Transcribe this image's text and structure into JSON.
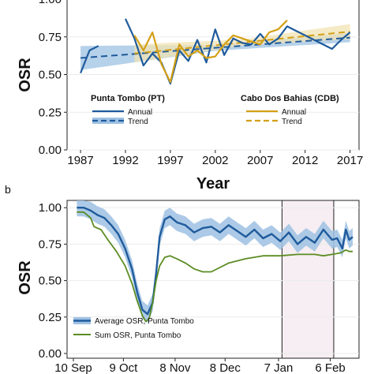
{
  "colors": {
    "pt": "#1f5b9c",
    "pt_band": "#9ec1e3",
    "cdb": "#d4a017",
    "cdb_band": "#f1e3b3",
    "green": "#5b8c22",
    "highlight": "#f6eef2"
  },
  "chart_data": [
    {
      "panel_label": "",
      "type": "line",
      "xlabel": "Year",
      "ylabel": "OSR",
      "xlim": [
        1985.5,
        2018
      ],
      "ylim": [
        0,
        1.0
      ],
      "x_ticks": [
        1987,
        1992,
        1997,
        2002,
        2007,
        2012,
        2017
      ],
      "y_ticks": [
        0,
        0.25,
        0.5,
        0.75,
        1.0
      ],
      "y_tick_labels": [
        "0.00",
        "0.25",
        "0.50",
        "0.75",
        "1.00"
      ],
      "legend_pt_title": "Punta Tombo (PT)",
      "legend_cdb_title": "Cabo Dos Bahias (CDB)",
      "legend_annual": "Annual",
      "legend_trend": "Trend",
      "series": [
        {
          "key": "pt_annual",
          "x": [
            1987,
            1988,
            1989,
            1991,
            1992,
            1993,
            1994,
            1995,
            1996,
            1997,
            1998,
            1999,
            2000,
            2001,
            2002,
            2003,
            2004,
            2005,
            2006,
            2007,
            2008,
            2009,
            2010,
            2015,
            2016,
            2017
          ],
          "y": [
            0.51,
            0.66,
            0.69,
            null,
            0.87,
            0.74,
            0.56,
            0.64,
            0.58,
            0.44,
            0.66,
            0.59,
            0.73,
            0.58,
            0.8,
            0.63,
            0.74,
            0.71,
            0.7,
            0.77,
            0.7,
            0.74,
            0.82,
            0.67,
            0.73,
            0.78
          ]
        },
        {
          "key": "cdb_annual",
          "x": [
            1993,
            1994,
            1995,
            1996,
            1997,
            1998,
            1999,
            2000,
            2001,
            2002,
            2003,
            2004,
            2005,
            2006,
            2007,
            2008,
            2009,
            2010
          ],
          "y": [
            0.76,
            0.66,
            0.78,
            0.57,
            0.45,
            0.7,
            0.62,
            0.66,
            0.61,
            0.62,
            0.7,
            0.76,
            0.74,
            0.72,
            0.7,
            0.78,
            0.8,
            0.86
          ]
        }
      ],
      "trends": [
        {
          "key": "pt_trend",
          "x": [
            1987,
            2017
          ],
          "y": [
            0.61,
            0.745
          ],
          "band": [
            0.08,
            0.02,
            0.03
          ]
        },
        {
          "key": "cdb_trend",
          "x": [
            1993,
            2017
          ],
          "y": [
            0.64,
            0.785
          ],
          "band": [
            0.06,
            0.02,
            0.05
          ]
        }
      ]
    },
    {
      "panel_label": "b",
      "type": "line",
      "xlabel": "",
      "ylabel": "OSR",
      "xlim": [
        0,
        162
      ],
      "ylim": [
        0,
        1.05
      ],
      "x_ticks": [
        0,
        29,
        59,
        88,
        119,
        149
      ],
      "x_tick_labels": [
        "10 Sep",
        "9 Oct",
        "8 Nov",
        "8 Dec",
        "7 Jan",
        "6 Feb"
      ],
      "y_ticks": [
        0,
        0.25,
        0.5,
        0.75,
        1.0
      ],
      "y_tick_labels": [
        "0.00",
        "0.25",
        "0.50",
        "0.75",
        "1.00"
      ],
      "highlight_range": [
        121,
        151
      ],
      "legend": [
        "Average OSR, Punta Tombo",
        "Sum OSR, Punta Tombo"
      ],
      "series": [
        {
          "key": "avg",
          "x": [
            2,
            6,
            10,
            14,
            18,
            22,
            26,
            30,
            34,
            37,
            40,
            43,
            46,
            48,
            50,
            53,
            56,
            60,
            65,
            70,
            75,
            80,
            85,
            90,
            95,
            100,
            105,
            110,
            115,
            120,
            125,
            130,
            135,
            140,
            145,
            150,
            153,
            156,
            158,
            160,
            162
          ],
          "y": [
            1.0,
            1.0,
            0.98,
            0.95,
            0.93,
            0.88,
            0.82,
            0.72,
            0.58,
            0.42,
            0.3,
            0.27,
            0.35,
            0.55,
            0.8,
            0.92,
            0.94,
            0.9,
            0.88,
            0.83,
            0.86,
            0.87,
            0.83,
            0.88,
            0.84,
            0.8,
            0.85,
            0.79,
            0.82,
            0.77,
            0.83,
            0.75,
            0.8,
            0.76,
            0.85,
            0.78,
            0.79,
            0.72,
            0.85,
            0.78,
            0.8
          ],
          "band": 0.06
        },
        {
          "key": "sum",
          "x": [
            2,
            6,
            10,
            12,
            16,
            20,
            25,
            30,
            34,
            37,
            40,
            42,
            44,
            46,
            48,
            50,
            53,
            56,
            60,
            65,
            70,
            75,
            80,
            85,
            90,
            100,
            110,
            120,
            130,
            140,
            145,
            150,
            155,
            158,
            160,
            162
          ],
          "y": [
            0.97,
            0.97,
            0.93,
            0.87,
            0.85,
            0.78,
            0.7,
            0.6,
            0.48,
            0.36,
            0.26,
            0.22,
            0.24,
            0.35,
            0.5,
            0.6,
            0.66,
            0.67,
            0.65,
            0.62,
            0.58,
            0.56,
            0.56,
            0.59,
            0.62,
            0.65,
            0.67,
            0.67,
            0.68,
            0.68,
            0.67,
            0.68,
            0.69,
            0.71,
            0.7,
            0.7
          ]
        }
      ]
    }
  ]
}
